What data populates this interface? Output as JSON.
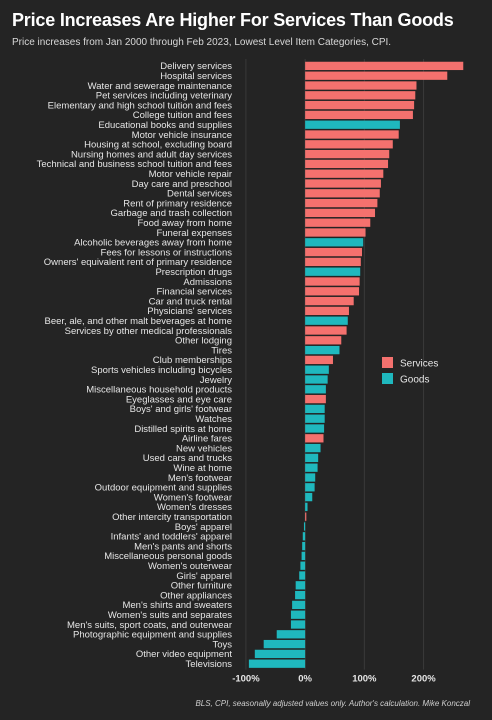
{
  "chart_data": {
    "type": "bar",
    "orientation": "horizontal",
    "title": "Price Increases Are Higher For Services Than Goods",
    "subtitle": "Price increases from Jan 2000 through Feb 2023, Lowest Level Item Categories, CPI.",
    "footnote": "BLS, CPI, seasonally adjusted values only. Author's calculation. Mike Konczal",
    "xlim": [
      -110,
      275
    ],
    "xticks": [
      -100,
      0,
      100,
      200
    ],
    "xtick_labels": [
      "-100%",
      "0%",
      "100%",
      "200%"
    ],
    "grid": true,
    "legend_position": "right",
    "series": [
      {
        "name": "Services",
        "color": "#f4716e"
      },
      {
        "name": "Goods",
        "color": "#1fb8be"
      }
    ],
    "categories": [
      "Delivery services",
      "Hospital services",
      "Water and sewerage maintenance",
      "Pet services including veterinary",
      "Elementary and high school tuition and fees",
      "College tuition and fees",
      "Educational books and supplies",
      "Motor vehicle insurance",
      "Housing at school, excluding board",
      "Nursing homes and adult day services",
      "Technical and business school tuition and fees",
      "Motor vehicle repair",
      "Day care and preschool",
      "Dental services",
      "Rent of primary residence",
      "Garbage and trash collection",
      "Food away from home",
      "Funeral expenses",
      "Alcoholic beverages away from home",
      "Fees for lessons or instructions",
      "Owners' equivalent rent of primary residence",
      "Prescription drugs",
      "Admissions",
      "Financial services",
      "Car and truck rental",
      "Physicians' services",
      "Beer, ale, and other malt beverages at home",
      "Services by other medical professionals",
      "Other lodging",
      "Tires",
      "Club memberships",
      "Sports vehicles including bicycles",
      "Jewelry",
      "Miscellaneous household products",
      "Eyeglasses and eye care",
      "Boys' and girls' footwear",
      "Watches",
      "Distilled spirits at home",
      "Airline fares",
      "New vehicles",
      "Used cars and trucks",
      "Wine at home",
      "Men's footwear",
      "Outdoor equipment and supplies",
      "Women's footwear",
      "Women's dresses",
      "Other intercity transportation",
      "Boys' apparel",
      "Infants' and toddlers' apparel",
      "Men's pants and shorts",
      "Miscellaneous personal goods",
      "Women's outerwear",
      "Girls' apparel",
      "Other furniture",
      "Other appliances",
      "Men's shirts and sweaters",
      "Women's suits and separates",
      "Men's suits, sport coats, and outerwear",
      "Photographic equipment and supplies",
      "Toys",
      "Other video equipment",
      "Televisions"
    ],
    "values": [
      267,
      240,
      188,
      186,
      184,
      182,
      160,
      158,
      148,
      142,
      140,
      132,
      128,
      126,
      122,
      118,
      110,
      102,
      98,
      96,
      94,
      93,
      92,
      91,
      82,
      74,
      72,
      70,
      61,
      58,
      47,
      40,
      38,
      35,
      35,
      33,
      33,
      32,
      31,
      26,
      22,
      21,
      17,
      16,
      12,
      4,
      2,
      -2,
      -4,
      -5,
      -6,
      -8,
      -10,
      -16,
      -17,
      -22,
      -24,
      -24,
      -48,
      -70,
      -85,
      -95
    ],
    "groups": [
      "Services",
      "Services",
      "Services",
      "Services",
      "Services",
      "Services",
      "Goods",
      "Services",
      "Services",
      "Services",
      "Services",
      "Services",
      "Services",
      "Services",
      "Services",
      "Services",
      "Services",
      "Services",
      "Goods",
      "Services",
      "Services",
      "Goods",
      "Services",
      "Services",
      "Services",
      "Services",
      "Goods",
      "Services",
      "Services",
      "Goods",
      "Services",
      "Goods",
      "Goods",
      "Goods",
      "Services",
      "Goods",
      "Goods",
      "Goods",
      "Services",
      "Goods",
      "Goods",
      "Goods",
      "Goods",
      "Goods",
      "Goods",
      "Goods",
      "Services",
      "Goods",
      "Goods",
      "Goods",
      "Goods",
      "Goods",
      "Goods",
      "Goods",
      "Goods",
      "Goods",
      "Goods",
      "Goods",
      "Goods",
      "Goods",
      "Goods",
      "Goods"
    ]
  }
}
